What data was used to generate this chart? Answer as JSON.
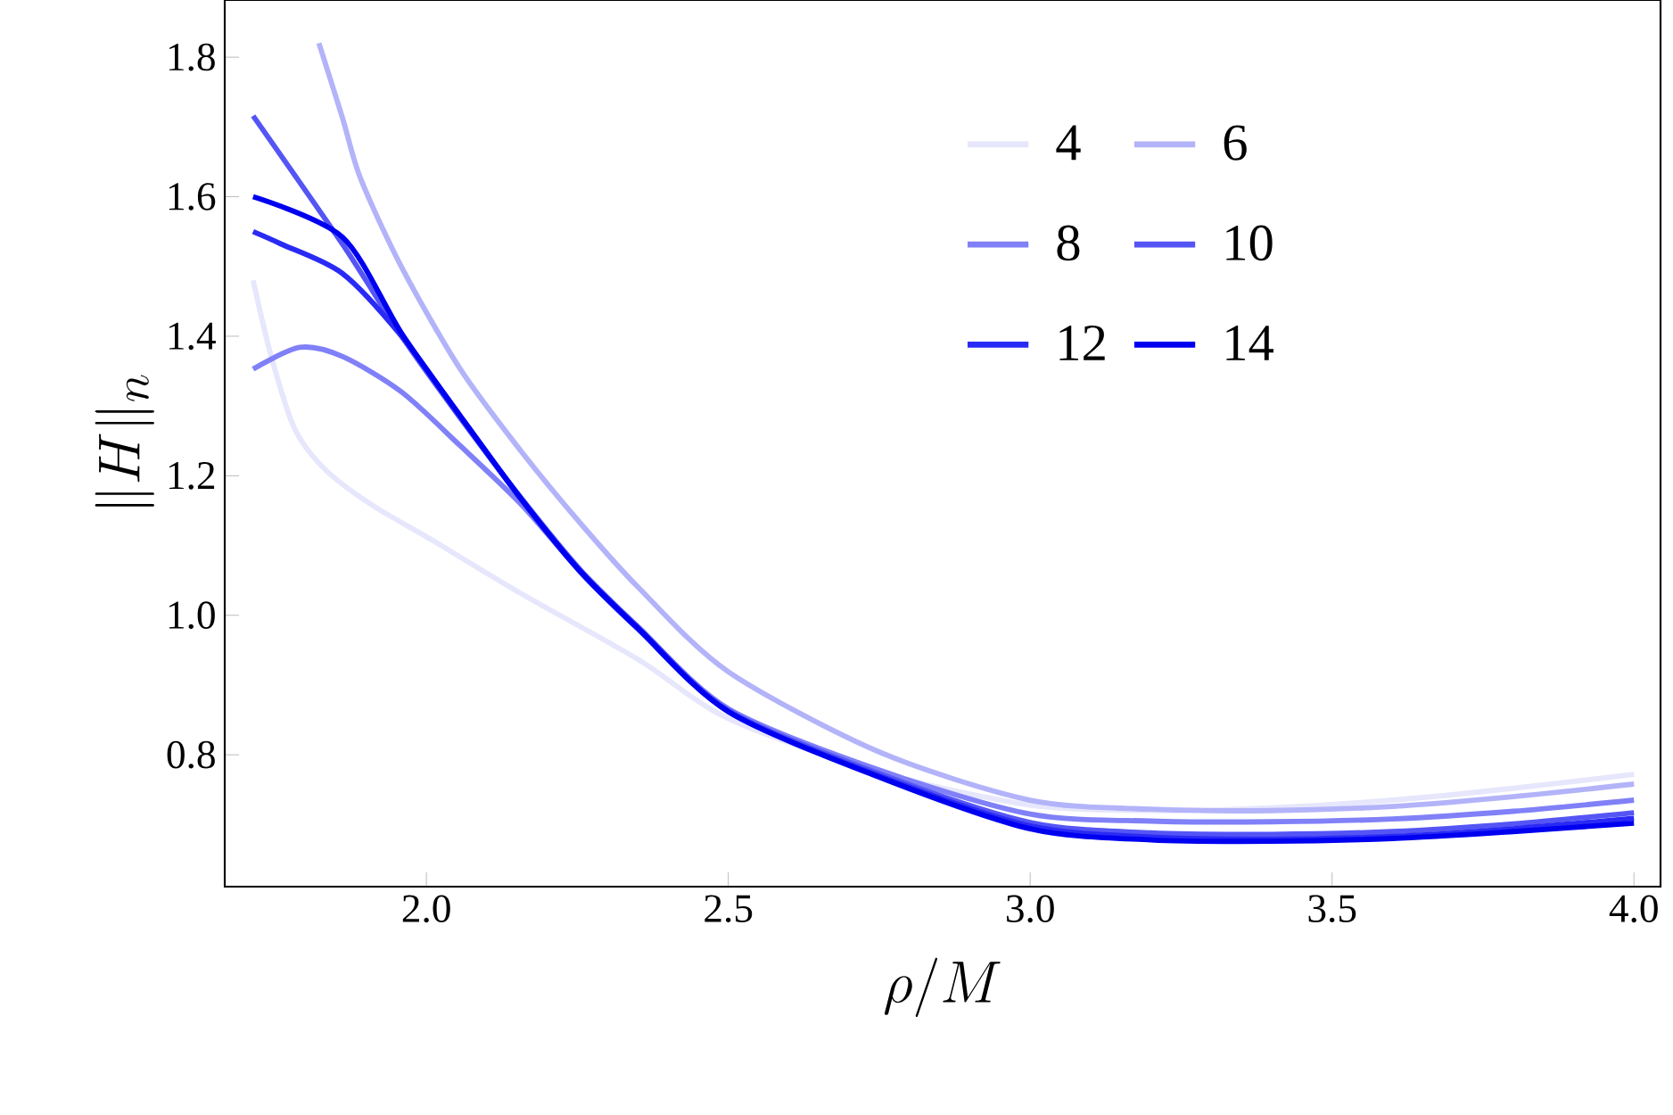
{
  "chart_data": {
    "type": "line",
    "xlabel": "\\rho/M",
    "ylabel": "\\|H\\|_n",
    "xlim": [
      1.666,
      4.044
    ],
    "ylim": [
      0.611,
      1.882
    ],
    "xticks": [
      {
        "value": 2,
        "label": "2.0"
      },
      2.5,
      {
        "value": 3,
        "label": "3.0"
      },
      3.5,
      {
        "value": 4,
        "label": "4.0"
      }
    ],
    "yticks": [
      0.8,
      {
        "value": 1,
        "label": "1.0"
      },
      1.2,
      1.4,
      1.6,
      1.8
    ],
    "grid": false,
    "legend": "top right",
    "marker": "none",
    "line_style": "solid",
    "series": [
      {
        "name": "4",
        "color": "#e6e6fc",
        "x": [
          1.713,
          1.743,
          1.781,
          1.831,
          1.908,
          2.009,
          2.157,
          2.35,
          2.5,
          2.75,
          3.0,
          3.2,
          3.4,
          3.6,
          3.8,
          4.0
        ],
        "values": [
          1.48,
          1.371,
          1.269,
          1.21,
          1.159,
          1.108,
          1.031,
          0.937,
          0.852,
          0.775,
          0.728,
          0.72,
          0.724,
          0.735,
          0.752,
          0.772
        ]
      },
      {
        "name": "6",
        "color": "#b3b3fa",
        "x": [
          1.822,
          1.861,
          1.891,
          1.959,
          2.056,
          2.157,
          2.254,
          2.352,
          2.5,
          2.75,
          3.0,
          3.2,
          3.4,
          3.6,
          3.8,
          4.0
        ],
        "values": [
          1.82,
          1.713,
          1.626,
          1.499,
          1.353,
          1.235,
          1.133,
          1.039,
          0.919,
          0.804,
          0.735,
          0.722,
          0.72,
          0.726,
          0.74,
          0.758
        ]
      },
      {
        "name": "8",
        "color": "#8080f8",
        "x": [
          1.713,
          1.79,
          1.861,
          1.959,
          2.056,
          2.157,
          2.254,
          2.352,
          2.5,
          2.75,
          3.0,
          3.2,
          3.4,
          3.6,
          3.8,
          4.0
        ],
        "values": [
          1.353,
          1.384,
          1.371,
          1.32,
          1.243,
          1.159,
          1.064,
          0.982,
          0.866,
          0.778,
          0.715,
          0.705,
          0.704,
          0.708,
          0.719,
          0.735
        ]
      },
      {
        "name": "10",
        "color": "#5555f5",
        "x": [
          1.713,
          1.861,
          1.959,
          2.056,
          2.157,
          2.254,
          2.352,
          2.5,
          2.75,
          3.0,
          3.2,
          3.4,
          3.6,
          3.8,
          4.0
        ],
        "values": [
          1.716,
          1.532,
          1.4,
          1.283,
          1.168,
          1.066,
          0.982,
          0.864,
          0.773,
          0.703,
          0.688,
          0.686,
          0.69,
          0.701,
          0.717
        ]
      },
      {
        "name": "12",
        "color": "#2a2af5",
        "x": [
          1.713,
          1.76,
          1.861,
          1.959,
          2.056,
          2.157,
          2.254,
          2.352,
          2.5,
          2.75,
          3.0,
          3.2,
          3.4,
          3.6,
          3.8,
          4.0
        ],
        "values": [
          1.55,
          1.532,
          1.49,
          1.4,
          1.285,
          1.166,
          1.063,
          0.979,
          0.862,
          0.77,
          0.698,
          0.682,
          0.679,
          0.683,
          0.694,
          0.709
        ]
      },
      {
        "name": "14",
        "color": "#0000f0",
        "x": [
          1.713,
          1.861,
          1.959,
          2.056,
          2.157,
          2.254,
          2.352,
          2.5,
          2.75,
          3.0,
          3.2,
          3.4,
          3.6,
          3.8,
          4.0
        ],
        "values": [
          1.6,
          1.542,
          1.404,
          1.286,
          1.167,
          1.064,
          0.98,
          0.862,
          0.768,
          0.694,
          0.678,
          0.676,
          0.68,
          0.69,
          0.702
        ]
      }
    ]
  }
}
